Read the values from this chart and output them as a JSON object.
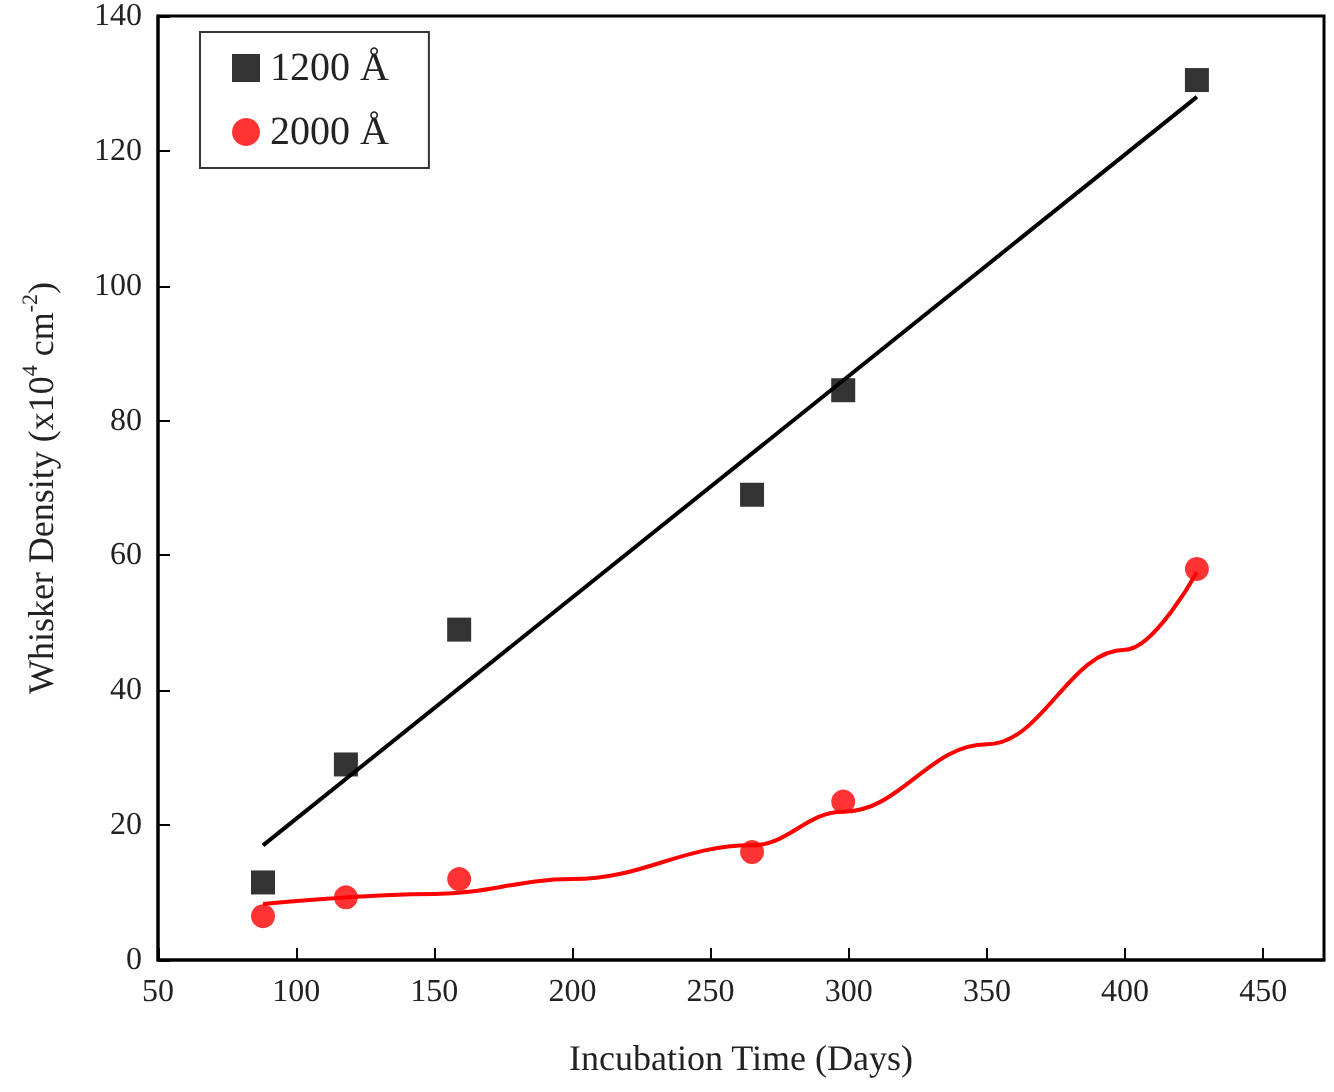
{
  "chart_data": {
    "type": "scatter",
    "xlabel": "Incubation Time (Days)",
    "ylabel": "Whisker Density (x10$^{4}$ cm$^{-2}$)",
    "x": [
      88,
      118,
      159,
      265,
      298,
      426
    ],
    "series": [
      {
        "name": "1200 Å",
        "color": "#000000",
        "marker": "square",
        "values": [
          11.5,
          29,
          49,
          69,
          84.5,
          130.5
        ]
      },
      {
        "name": "2000 Å",
        "color": "#ff0000",
        "marker": "circle",
        "values": [
          6.5,
          9.3,
          12,
          16,
          23.5,
          58
        ]
      },
      {
        "type": "line",
        "color": "#000000",
        "marker": "none",
        "x": [
          88,
          426
        ],
        "values": [
          17,
          128
        ]
      },
      {
        "type": "line",
        "color": "#ff0000",
        "marker": "none",
        "x": [
          88,
          150,
          200,
          265,
          298,
          350,
          400,
          426
        ],
        "values": [
          8.3,
          9.8,
          12,
          17,
          22,
          32,
          46,
          57.5
        ]
      }
    ],
    "xlim": [
      50,
      472
    ],
    "xticks": [
      50,
      100,
      150,
      200,
      250,
      300,
      350,
      400,
      450
    ],
    "ylim": [
      0,
      140
    ],
    "yticks": [
      0,
      20,
      40,
      60,
      80,
      100,
      120,
      140
    ],
    "grid": false,
    "legend": "top left"
  }
}
